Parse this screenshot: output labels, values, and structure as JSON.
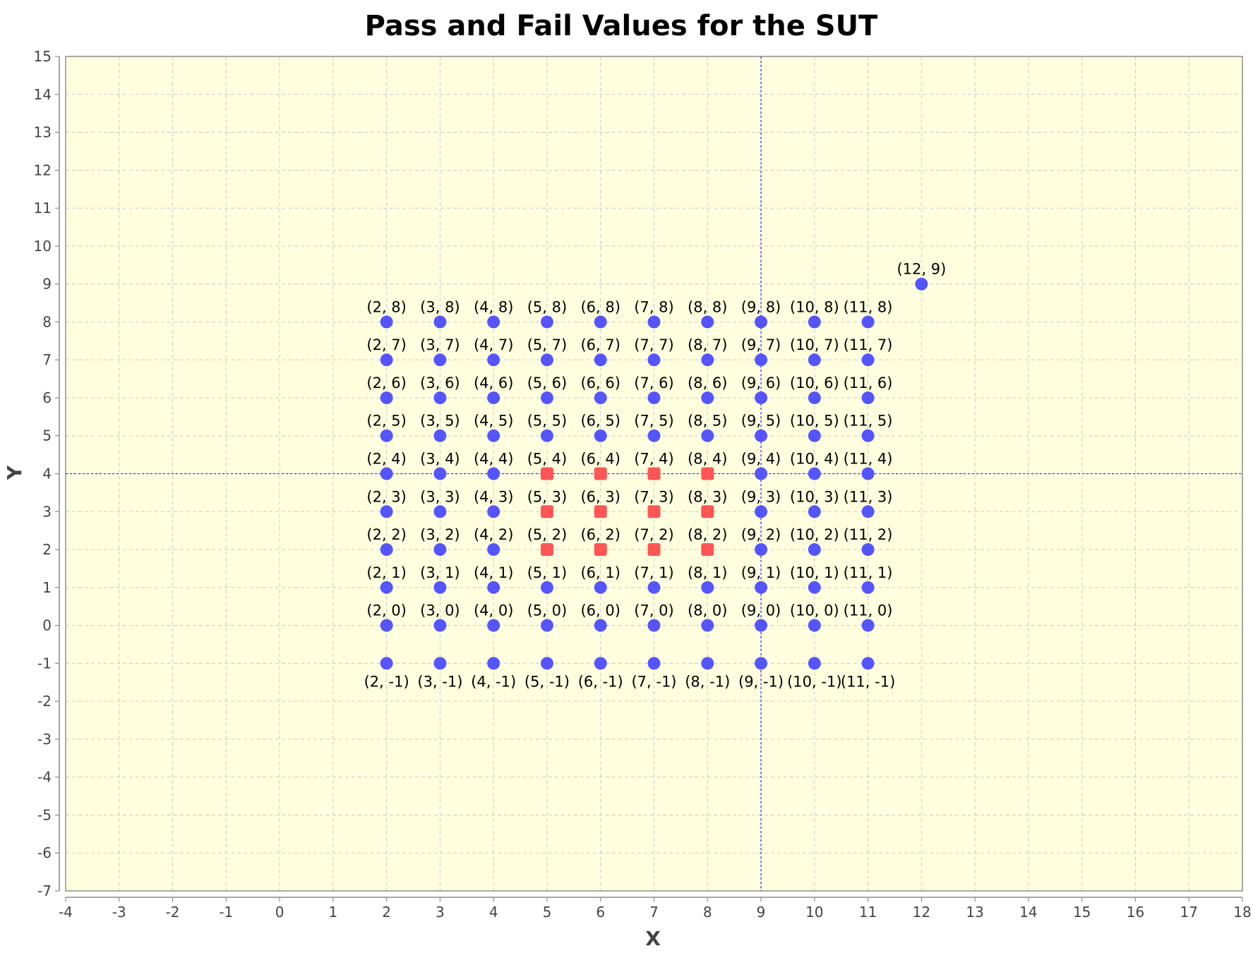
{
  "chart_data": {
    "type": "scatter",
    "title": "Pass and Fail Values for the SUT",
    "xlabel": "X",
    "ylabel": "Y",
    "xlim": [
      -4,
      18
    ],
    "ylim": [
      -7,
      15
    ],
    "xticks": [
      -4,
      -3,
      -2,
      -1,
      0,
      1,
      2,
      3,
      4,
      5,
      6,
      7,
      8,
      9,
      10,
      11,
      12,
      13,
      14,
      15,
      16,
      17,
      18
    ],
    "yticks": [
      -7,
      -6,
      -5,
      -4,
      -3,
      -2,
      -1,
      0,
      1,
      2,
      3,
      4,
      5,
      6,
      7,
      8,
      9,
      10,
      11,
      12,
      13,
      14,
      15
    ],
    "grid": true,
    "crosshair": {
      "x": 9,
      "y": 4
    },
    "pass_label_position": "above",
    "series": [
      {
        "marker": "circle",
        "color": "#5555ff",
        "points": [
          [
            2,
            -1
          ],
          [
            3,
            -1
          ],
          [
            4,
            -1
          ],
          [
            5,
            -1
          ],
          [
            6,
            -1
          ],
          [
            7,
            -1
          ],
          [
            8,
            -1
          ],
          [
            9,
            -1
          ],
          [
            10,
            -1
          ],
          [
            11,
            -1
          ],
          [
            2,
            0
          ],
          [
            3,
            0
          ],
          [
            4,
            0
          ],
          [
            5,
            0
          ],
          [
            6,
            0
          ],
          [
            7,
            0
          ],
          [
            8,
            0
          ],
          [
            9,
            0
          ],
          [
            10,
            0
          ],
          [
            11,
            0
          ],
          [
            2,
            1
          ],
          [
            3,
            1
          ],
          [
            4,
            1
          ],
          [
            5,
            1
          ],
          [
            6,
            1
          ],
          [
            7,
            1
          ],
          [
            8,
            1
          ],
          [
            9,
            1
          ],
          [
            10,
            1
          ],
          [
            11,
            1
          ],
          [
            2,
            2
          ],
          [
            3,
            2
          ],
          [
            4,
            2
          ],
          [
            9,
            2
          ],
          [
            10,
            2
          ],
          [
            11,
            2
          ],
          [
            2,
            3
          ],
          [
            3,
            3
          ],
          [
            4,
            3
          ],
          [
            9,
            3
          ],
          [
            10,
            3
          ],
          [
            11,
            3
          ],
          [
            2,
            4
          ],
          [
            3,
            4
          ],
          [
            4,
            4
          ],
          [
            9,
            4
          ],
          [
            10,
            4
          ],
          [
            11,
            4
          ],
          [
            2,
            5
          ],
          [
            3,
            5
          ],
          [
            4,
            5
          ],
          [
            5,
            5
          ],
          [
            6,
            5
          ],
          [
            7,
            5
          ],
          [
            8,
            5
          ],
          [
            9,
            5
          ],
          [
            10,
            5
          ],
          [
            11,
            5
          ],
          [
            2,
            6
          ],
          [
            3,
            6
          ],
          [
            4,
            6
          ],
          [
            5,
            6
          ],
          [
            6,
            6
          ],
          [
            7,
            6
          ],
          [
            8,
            6
          ],
          [
            9,
            6
          ],
          [
            10,
            6
          ],
          [
            11,
            6
          ],
          [
            2,
            7
          ],
          [
            3,
            7
          ],
          [
            4,
            7
          ],
          [
            5,
            7
          ],
          [
            6,
            7
          ],
          [
            7,
            7
          ],
          [
            8,
            7
          ],
          [
            9,
            7
          ],
          [
            10,
            7
          ],
          [
            11,
            7
          ],
          [
            2,
            8
          ],
          [
            3,
            8
          ],
          [
            4,
            8
          ],
          [
            5,
            8
          ],
          [
            6,
            8
          ],
          [
            7,
            8
          ],
          [
            8,
            8
          ],
          [
            9,
            8
          ],
          [
            10,
            8
          ],
          [
            11,
            8
          ],
          [
            12,
            9
          ]
        ]
      },
      {
        "marker": "square",
        "color": "#ff5555",
        "points": [
          [
            5,
            2
          ],
          [
            6,
            2
          ],
          [
            7,
            2
          ],
          [
            8,
            2
          ],
          [
            5,
            3
          ],
          [
            6,
            3
          ],
          [
            7,
            3
          ],
          [
            8,
            3
          ],
          [
            5,
            4
          ],
          [
            6,
            4
          ],
          [
            7,
            4
          ],
          [
            8,
            4
          ]
        ]
      }
    ],
    "colors": {
      "plot_background": "#ffffe0",
      "grid": "#c8c8c8",
      "crosshair": "#3333ff",
      "axis": "#888888"
    }
  }
}
